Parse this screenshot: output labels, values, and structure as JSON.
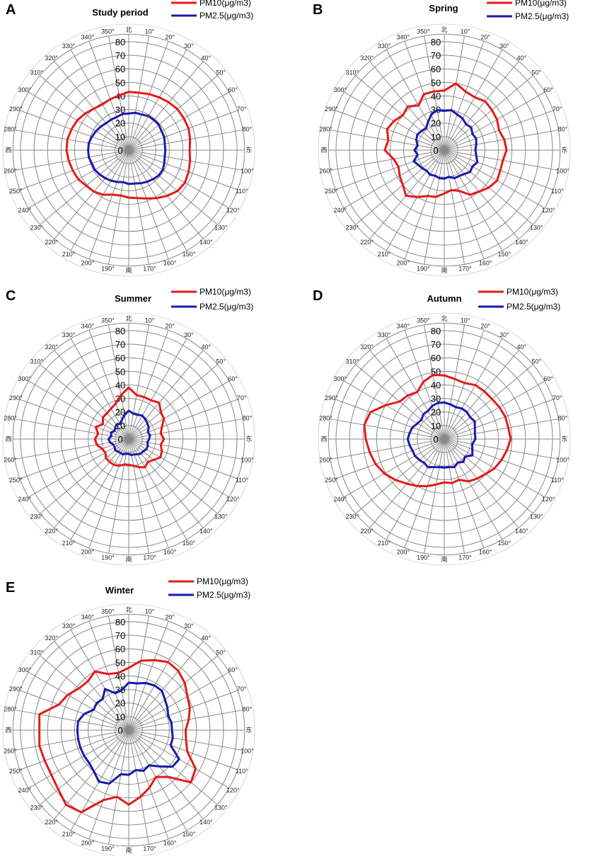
{
  "figure": {
    "direction_labels": {
      "north": "北",
      "east": "东",
      "south": "南",
      "west": "西"
    },
    "angle_labels": [
      "10°",
      "20°",
      "30°",
      "40°",
      "50°",
      "60°",
      "70°",
      "80°",
      "100°",
      "110°",
      "120°",
      "130°",
      "140°",
      "150°",
      "160°",
      "170°",
      "190°",
      "200°",
      "210°",
      "220°",
      "230°",
      "240°",
      "250°",
      "260°",
      "280°",
      "290°",
      "300°",
      "310°",
      "320°",
      "330°",
      "340°",
      "350°"
    ],
    "radial_ticks": [
      "0",
      "10",
      "20",
      "30",
      "40",
      "50",
      "60",
      "70",
      "80"
    ],
    "legend": [
      "PM10(μg/m3)",
      "PM2.5(μg/m3)"
    ]
  },
  "chart_data": [
    {
      "type": "radar",
      "panel": "A",
      "title": "Study period",
      "directions_deg": [
        0,
        10,
        20,
        30,
        40,
        50,
        60,
        70,
        80,
        90,
        100,
        110,
        120,
        130,
        140,
        150,
        160,
        170,
        180,
        190,
        200,
        210,
        220,
        230,
        240,
        250,
        260,
        270,
        280,
        290,
        300,
        310,
        320,
        330,
        340,
        350
      ],
      "rlim": [
        0,
        80
      ],
      "series": [
        {
          "name": "PM10(μg/m3)",
          "color": "#e41a1c",
          "values": [
            43,
            43,
            44,
            45,
            46,
            47,
            47,
            47,
            46,
            45,
            46,
            47,
            48,
            47,
            44,
            41,
            38,
            36,
            35,
            34,
            35,
            38,
            40,
            41,
            43,
            44,
            45,
            46,
            46,
            45,
            44,
            42,
            40,
            39,
            40,
            41
          ]
        },
        {
          "name": "PM2.5(μg/m3)",
          "color": "#1a1aaa",
          "values": [
            27,
            28,
            28,
            29,
            29,
            29,
            28,
            28,
            27,
            27,
            27,
            28,
            29,
            29,
            28,
            27,
            26,
            25,
            25,
            24,
            25,
            26,
            27,
            28,
            29,
            29,
            30,
            30,
            30,
            29,
            28,
            27,
            26,
            26,
            26,
            27
          ]
        }
      ]
    },
    {
      "type": "radar",
      "panel": "B",
      "title": "Spring",
      "directions_deg": [
        0,
        10,
        20,
        30,
        40,
        50,
        60,
        70,
        80,
        90,
        100,
        110,
        120,
        130,
        140,
        150,
        160,
        170,
        180,
        190,
        200,
        210,
        220,
        230,
        240,
        250,
        260,
        270,
        280,
        290,
        300,
        310,
        320,
        330,
        340,
        350
      ],
      "rlim": [
        0,
        80
      ],
      "series": [
        {
          "name": "PM10(μg/m3)",
          "color": "#e41a1c",
          "values": [
            44,
            50,
            46,
            45,
            47,
            46,
            45,
            43,
            45,
            46,
            44,
            44,
            45,
            43,
            40,
            38,
            32,
            30,
            32,
            35,
            36,
            40,
            44,
            40,
            38,
            36,
            38,
            44,
            42,
            45,
            43,
            40,
            42,
            38,
            44,
            44
          ]
        },
        {
          "name": "PM2.5(μg/m3)",
          "color": "#1a1aaa",
          "values": [
            29,
            30,
            28,
            27,
            25,
            26,
            24,
            25,
            24,
            23,
            24,
            26,
            24,
            25,
            23,
            22,
            22,
            20,
            21,
            21,
            20,
            21,
            20,
            21,
            22,
            24,
            20,
            22,
            20,
            22,
            23,
            22,
            21,
            24,
            28,
            30
          ]
        }
      ]
    },
    {
      "type": "radar",
      "panel": "C",
      "title": "Summer",
      "directions_deg": [
        0,
        10,
        20,
        30,
        40,
        50,
        60,
        70,
        80,
        90,
        100,
        110,
        120,
        130,
        140,
        150,
        160,
        170,
        180,
        190,
        200,
        210,
        220,
        230,
        240,
        250,
        260,
        270,
        280,
        290,
        300,
        310,
        320,
        330,
        340,
        350
      ],
      "rlim": [
        0,
        80
      ],
      "series": [
        {
          "name": "PM10(μg/m3)",
          "color": "#e41a1c",
          "values": [
            38,
            33,
            33,
            33,
            35,
            31,
            30,
            26,
            24,
            26,
            24,
            26,
            27,
            24,
            22,
            24,
            22,
            20,
            19,
            19,
            21,
            22,
            22,
            22,
            20,
            21,
            24,
            25,
            23,
            26,
            22,
            25,
            25,
            26,
            28,
            33
          ]
        },
        {
          "name": "PM2.5(μg/m3)",
          "color": "#1a1aaa",
          "values": [
            21,
            19,
            19,
            20,
            19,
            18,
            17,
            15,
            16,
            15,
            14,
            15,
            15,
            14,
            14,
            13,
            12,
            12,
            11,
            11,
            12,
            12,
            12,
            13,
            12,
            12,
            14,
            15,
            13,
            14,
            12,
            13,
            14,
            13,
            15,
            18
          ]
        }
      ]
    },
    {
      "type": "radar",
      "panel": "D",
      "title": "Autumn",
      "directions_deg": [
        0,
        10,
        20,
        30,
        40,
        50,
        60,
        70,
        80,
        90,
        100,
        110,
        120,
        130,
        140,
        150,
        160,
        170,
        180,
        190,
        200,
        210,
        220,
        230,
        240,
        250,
        260,
        270,
        280,
        290,
        300,
        310,
        320,
        330,
        340,
        350
      ],
      "rlim": [
        0,
        80
      ],
      "series": [
        {
          "name": "PM10(μg/m3)",
          "color": "#e41a1c",
          "values": [
            47,
            45,
            44,
            46,
            46,
            46,
            47,
            48,
            48,
            49,
            47,
            45,
            43,
            40,
            38,
            36,
            32,
            33,
            32,
            34,
            37,
            40,
            43,
            47,
            51,
            54,
            56,
            58,
            60,
            58,
            50,
            43,
            42,
            40,
            45,
            48
          ]
        },
        {
          "name": "PM2.5(μg/m3)",
          "color": "#1a1aaa",
          "values": [
            27,
            26,
            25,
            26,
            26,
            25,
            26,
            24,
            23,
            23,
            21,
            22,
            24,
            20,
            22,
            20,
            22,
            21,
            21,
            21,
            22,
            24,
            23,
            24,
            25,
            25,
            26,
            27,
            26,
            25,
            23,
            22,
            24,
            24,
            26,
            27
          ]
        }
      ]
    },
    {
      "type": "radar",
      "panel": "E",
      "title": "Winter",
      "directions_deg": [
        0,
        10,
        20,
        30,
        40,
        50,
        60,
        70,
        80,
        90,
        100,
        110,
        120,
        130,
        140,
        150,
        160,
        170,
        180,
        190,
        200,
        210,
        220,
        230,
        240,
        250,
        260,
        270,
        280,
        290,
        300,
        310,
        320,
        330,
        340,
        350
      ],
      "rlim": [
        0,
        80
      ],
      "series": [
        {
          "name": "PM10(μg/m3)",
          "color": "#e41a1c",
          "values": [
            46,
            52,
            55,
            58,
            57,
            54,
            50,
            48,
            45,
            42,
            43,
            46,
            57,
            60,
            45,
            40,
            45,
            50,
            55,
            50,
            55,
            70,
            72,
            68,
            66,
            66,
            67,
            66,
            67,
            55,
            52,
            48,
            47,
            50,
            44,
            43
          ]
        },
        {
          "name": "PM2.5(μg/m3)",
          "color": "#1a1aaa",
          "values": [
            35,
            35,
            37,
            38,
            38,
            35,
            33,
            31,
            32,
            32,
            33,
            33,
            43,
            42,
            35,
            30,
            32,
            30,
            33,
            33,
            42,
            44,
            40,
            38,
            38,
            38,
            38,
            38,
            38,
            35,
            30,
            31,
            30,
            35,
            29,
            30
          ]
        }
      ]
    }
  ]
}
